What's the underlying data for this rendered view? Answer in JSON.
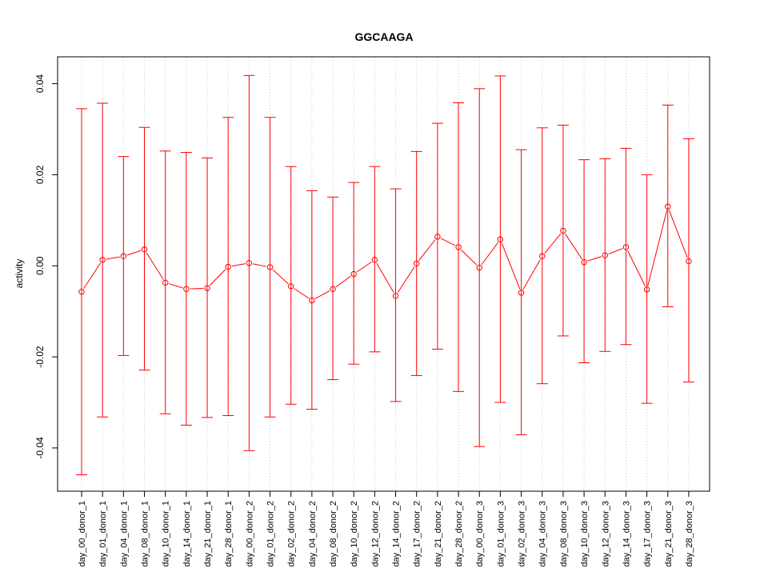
{
  "chart_data": {
    "type": "line",
    "title": "GGCAAGA",
    "xlabel": "",
    "ylabel": "activity",
    "ylim": [
      -0.0495,
      0.0459
    ],
    "yticks": [
      -0.04,
      -0.02,
      0.0,
      0.02,
      0.04
    ],
    "ytick_labels": [
      "-0.04",
      "-0.02",
      "0.00",
      "0.02",
      "0.04"
    ],
    "grid": {
      "x": true,
      "y": false,
      "style": "dotted"
    },
    "color": "#ff0000",
    "categories": [
      "day_00_donor_1",
      "day_01_donor_1",
      "day_04_donor_1",
      "day_08_donor_1",
      "day_10_donor_1",
      "day_14_donor_1",
      "day_21_donor_1",
      "day_28_donor_1",
      "day_00_donor_2",
      "day_01_donor_2",
      "day_02_donor_2",
      "day_04_donor_2",
      "day_08_donor_2",
      "day_10_donor_2",
      "day_12_donor_2",
      "day_14_donor_2",
      "day_17_donor_2",
      "day_21_donor_2",
      "day_28_donor_2",
      "day_00_donor_3",
      "day_01_donor_3",
      "day_02_donor_3",
      "day_04_donor_3",
      "day_08_donor_3",
      "day_10_donor_3",
      "day_12_donor_3",
      "day_14_donor_3",
      "day_17_donor_3",
      "day_21_donor_3",
      "day_28_donor_3"
    ],
    "values": [
      -0.0057,
      0.0013,
      0.0021,
      0.0036,
      -0.0037,
      -0.0051,
      -0.0049,
      -0.0002,
      0.0006,
      -0.0003,
      -0.0045,
      -0.0076,
      -0.0051,
      -0.0018,
      0.0013,
      -0.0066,
      0.0005,
      0.0064,
      0.0041,
      -0.0004,
      0.0058,
      -0.0059,
      0.0021,
      0.0077,
      0.0008,
      0.0023,
      0.0041,
      -0.0052,
      0.013,
      0.001
    ],
    "upper": [
      0.0345,
      0.0357,
      0.024,
      0.0304,
      0.0252,
      0.0249,
      0.0237,
      0.0326,
      0.0418,
      0.0326,
      0.0218,
      0.0165,
      0.0151,
      0.0183,
      0.0218,
      0.0169,
      0.0251,
      0.0313,
      0.0358,
      0.0389,
      0.0417,
      0.0255,
      0.0303,
      0.0309,
      0.0233,
      0.0235,
      0.0258,
      0.02,
      0.0353,
      0.0279
    ],
    "lower": [
      -0.0459,
      -0.0332,
      -0.0197,
      -0.0229,
      -0.0325,
      -0.035,
      -0.0333,
      -0.0329,
      -0.0406,
      -0.0332,
      -0.0304,
      -0.0315,
      -0.025,
      -0.0216,
      -0.0189,
      -0.0298,
      -0.0241,
      -0.0183,
      -0.0276,
      -0.0397,
      -0.03,
      -0.0371,
      -0.0259,
      -0.0154,
      -0.0213,
      -0.0188,
      -0.0173,
      -0.0302,
      -0.009,
      -0.0255
    ]
  }
}
